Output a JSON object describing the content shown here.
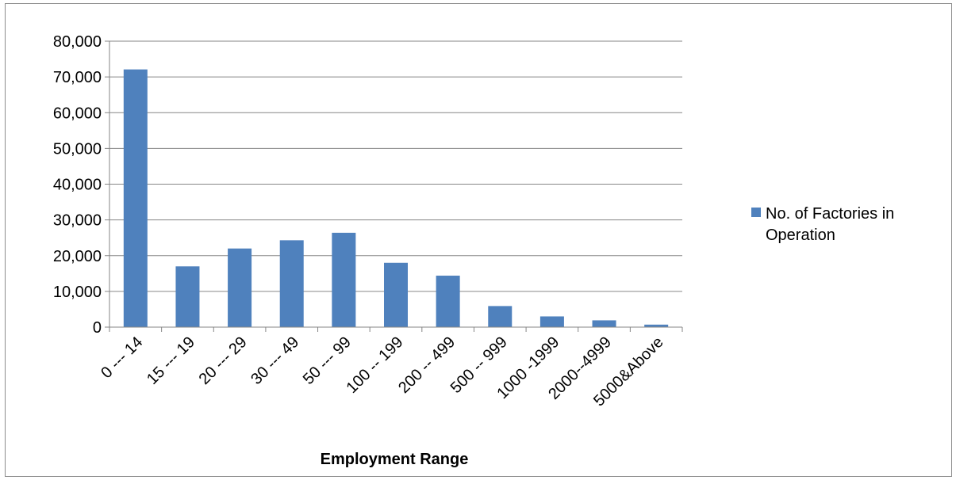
{
  "chart_data": {
    "type": "bar",
    "title": "",
    "xlabel": "Employment Range",
    "ylabel": "",
    "ylim": [
      0,
      80000
    ],
    "yticks": [
      0,
      10000,
      20000,
      30000,
      40000,
      50000,
      60000,
      70000,
      80000
    ],
    "ytick_labels": [
      "0",
      "10,000",
      "20,000",
      "30,000",
      "40,000",
      "50,000",
      "60,000",
      "70,000",
      "80,000"
    ],
    "grid": true,
    "legend_position": "right",
    "categories": [
      "0 --- 14",
      "15 --- 19",
      "20 --- 29",
      "30 --- 49",
      "50 --- 99",
      "100 -- 199",
      "200 -- 499",
      "500 -- 999",
      "1000 -1999",
      "2000--4999",
      "5000&Above"
    ],
    "series": [
      {
        "name": "No. of Factories in Operation",
        "color": "#4f81bd",
        "values": [
          72100,
          17000,
          22000,
          24300,
          26400,
          18000,
          14400,
          5900,
          3000,
          1900,
          700
        ]
      }
    ]
  }
}
